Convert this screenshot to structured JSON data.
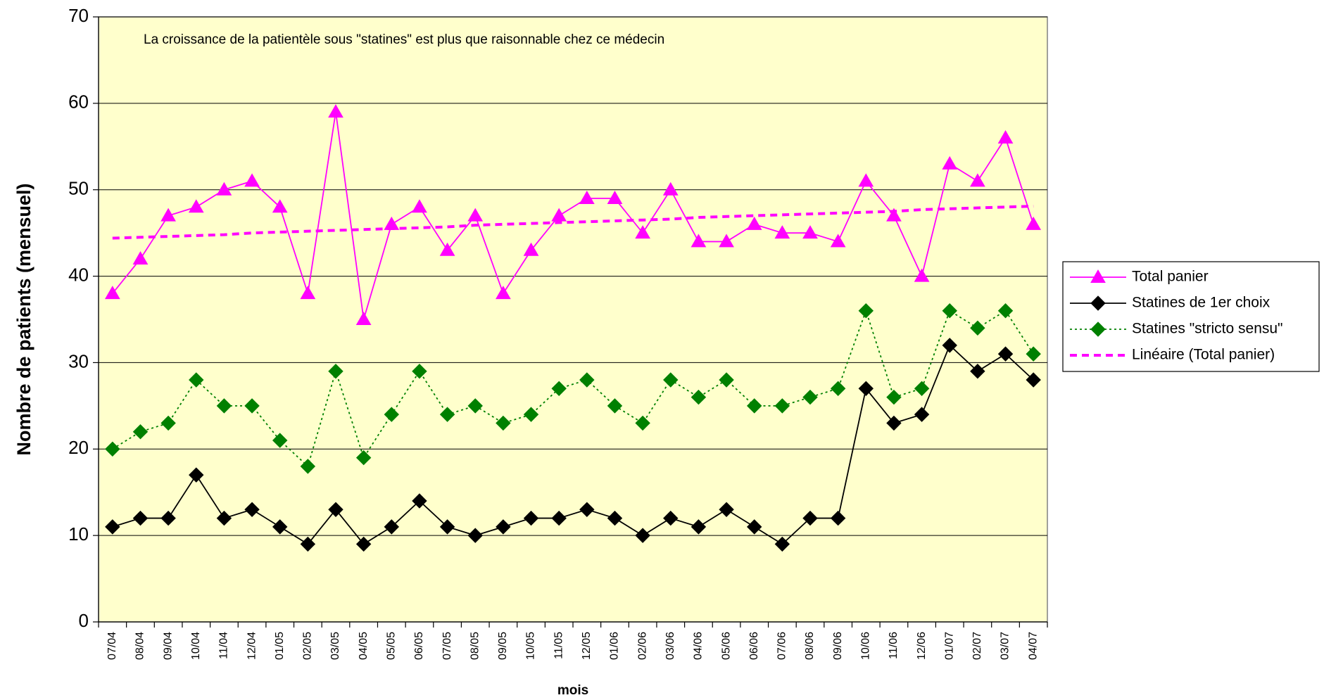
{
  "chart_data": {
    "type": "line",
    "annotation": "La croissance de la patientèle sous \"statines\" est plus que raisonnable chez ce médecin",
    "x_label": "mois",
    "y_label": "Nombre de patients (mensuel)",
    "categories": [
      "07/04",
      "08/04",
      "09/04",
      "10/04",
      "11/04",
      "12/04",
      "01/05",
      "02/05",
      "03/05",
      "04/05",
      "05/05",
      "06/05",
      "07/05",
      "08/05",
      "09/05",
      "10/05",
      "11/05",
      "12/05",
      "01/06",
      "02/06",
      "03/06",
      "04/06",
      "05/06",
      "06/06",
      "07/06",
      "08/06",
      "09/06",
      "10/06",
      "11/06",
      "12/06",
      "01/07",
      "02/07",
      "03/07",
      "04/07"
    ],
    "series": [
      {
        "name": "Total panier",
        "color": "#ff00ff",
        "marker": "triangle",
        "dash": "solid",
        "values": [
          38,
          42,
          47,
          48,
          50,
          51,
          48,
          38,
          59,
          35,
          46,
          48,
          43,
          47,
          38,
          43,
          47,
          49,
          49,
          45,
          50,
          44,
          44,
          46,
          45,
          45,
          44,
          51,
          47,
          40,
          53,
          51,
          56,
          46
        ]
      },
      {
        "name": "Statines de 1er choix",
        "color": "#000000",
        "marker": "diamond",
        "dash": "solid",
        "values": [
          11,
          12,
          12,
          17,
          12,
          13,
          11,
          9,
          13,
          9,
          11,
          14,
          11,
          10,
          11,
          12,
          12,
          13,
          12,
          10,
          12,
          11,
          13,
          11,
          9,
          12,
          12,
          27,
          23,
          24,
          32,
          29,
          31,
          28
        ]
      },
      {
        "name": "Statines \"stricto sensu\"",
        "color": "#008000",
        "marker": "diamond",
        "dash": "dotted",
        "values": [
          20,
          22,
          23,
          28,
          25,
          25,
          21,
          18,
          29,
          19,
          24,
          29,
          24,
          25,
          23,
          24,
          27,
          28,
          25,
          23,
          28,
          26,
          28,
          25,
          25,
          26,
          27,
          36,
          26,
          27,
          36,
          34,
          36,
          31
        ]
      },
      {
        "name": "Linéaire (Total panier)",
        "color": "#ff00ff",
        "marker": "none",
        "dash": "dashed",
        "values": [
          44.4,
          44.5,
          44.6,
          44.7,
          44.8,
          45.0,
          45.1,
          45.2,
          45.3,
          45.4,
          45.5,
          45.6,
          45.7,
          45.9,
          46.0,
          46.1,
          46.2,
          46.3,
          46.4,
          46.5,
          46.6,
          46.8,
          46.9,
          47.0,
          47.1,
          47.2,
          47.3,
          47.4,
          47.5,
          47.7,
          47.8,
          47.9,
          48.0,
          48.1
        ]
      }
    ],
    "ylim": [
      0,
      70
    ],
    "yticks": [
      0,
      10,
      20,
      30,
      40,
      50,
      60,
      70
    ],
    "grid": true,
    "legend": "right"
  }
}
